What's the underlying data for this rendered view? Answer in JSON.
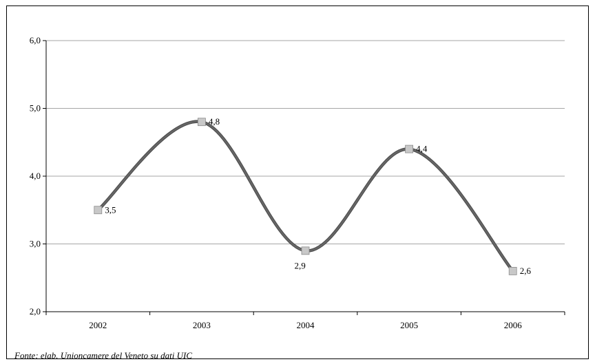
{
  "chart_data": {
    "type": "line",
    "categories": [
      "2002",
      "2003",
      "2004",
      "2005",
      "2006"
    ],
    "series": [
      {
        "values": [
          3.5,
          4.8,
          2.9,
          4.4,
          2.6
        ],
        "labels": [
          "3,5",
          "4,8",
          "2,9",
          "4,4",
          "2,6"
        ]
      }
    ],
    "ylim": [
      2.0,
      6.0
    ],
    "y_ticks": [
      2.0,
      3.0,
      4.0,
      5.0,
      6.0
    ],
    "y_tick_labels": [
      "2,0",
      "3,0",
      "4,0",
      "5,0",
      "6,0"
    ],
    "grid": true,
    "smooth": true,
    "line_color": "#666666",
    "marker_color": "#c8c8c8",
    "grid_color": "#a6a6a6"
  },
  "source_note": "Fonte: elab. Unioncamere del Veneto su dati UIC"
}
